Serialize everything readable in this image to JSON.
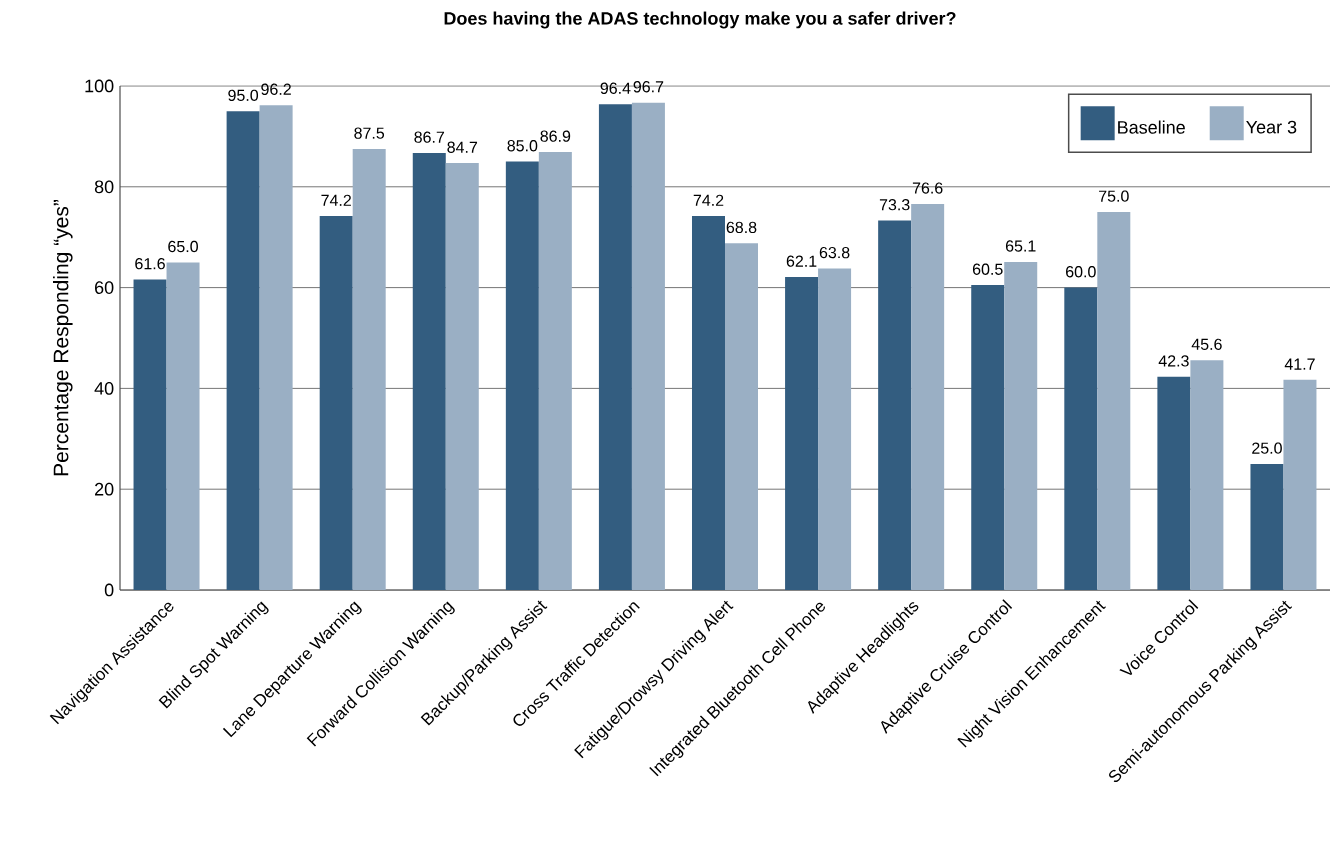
{
  "chart_data": {
    "type": "bar",
    "title": "Does having the ADAS technology make you a safer driver?",
    "ylabel": "Percentage Responding “yes”",
    "categories": [
      "Navigation Assistance",
      "Blind Spot Warning",
      "Lane Departure Warning",
      "Forward Collision Warning",
      "Backup/Parking Assist",
      "Cross Traffic Detection",
      "Fatigue/Drowsy Driving Alert",
      "Integrated Bluetooth Cell Phone",
      "Adaptive Headlights",
      "Adaptive Cruise Control",
      "Night Vision Enhancement",
      "Voice Control",
      "Semi-autonomous Parking Assist"
    ],
    "series": [
      {
        "name": "Baseline",
        "color": "#335d80",
        "values": [
          61.6,
          95.0,
          74.2,
          86.7,
          85.0,
          96.4,
          74.2,
          62.1,
          73.3,
          60.5,
          60.0,
          42.3,
          25.0
        ],
        "value_labels": [
          "61.6",
          "95.0",
          "74.2",
          "86.7",
          "85.0",
          "96.4",
          "74.2",
          "62.1",
          "73.3",
          "60.5",
          "60.0",
          "42.3",
          "25.0"
        ]
      },
      {
        "name": "Year 3",
        "color": "#9aafc4",
        "values": [
          65.0,
          96.2,
          87.5,
          84.7,
          86.9,
          96.7,
          68.8,
          63.8,
          76.6,
          65.1,
          75.0,
          45.6,
          41.7
        ],
        "value_labels": [
          "65.0",
          "96.2",
          "87.5",
          "84.7",
          "86.9",
          "96.7",
          "68.8",
          "63.8",
          "76.6",
          "65.1",
          "75.0",
          "45.6",
          "41.7"
        ]
      }
    ],
    "ylim": [
      0,
      100
    ],
    "yticks": [
      0,
      20,
      40,
      60,
      80,
      100
    ],
    "grid": "y",
    "legend": "top right"
  }
}
